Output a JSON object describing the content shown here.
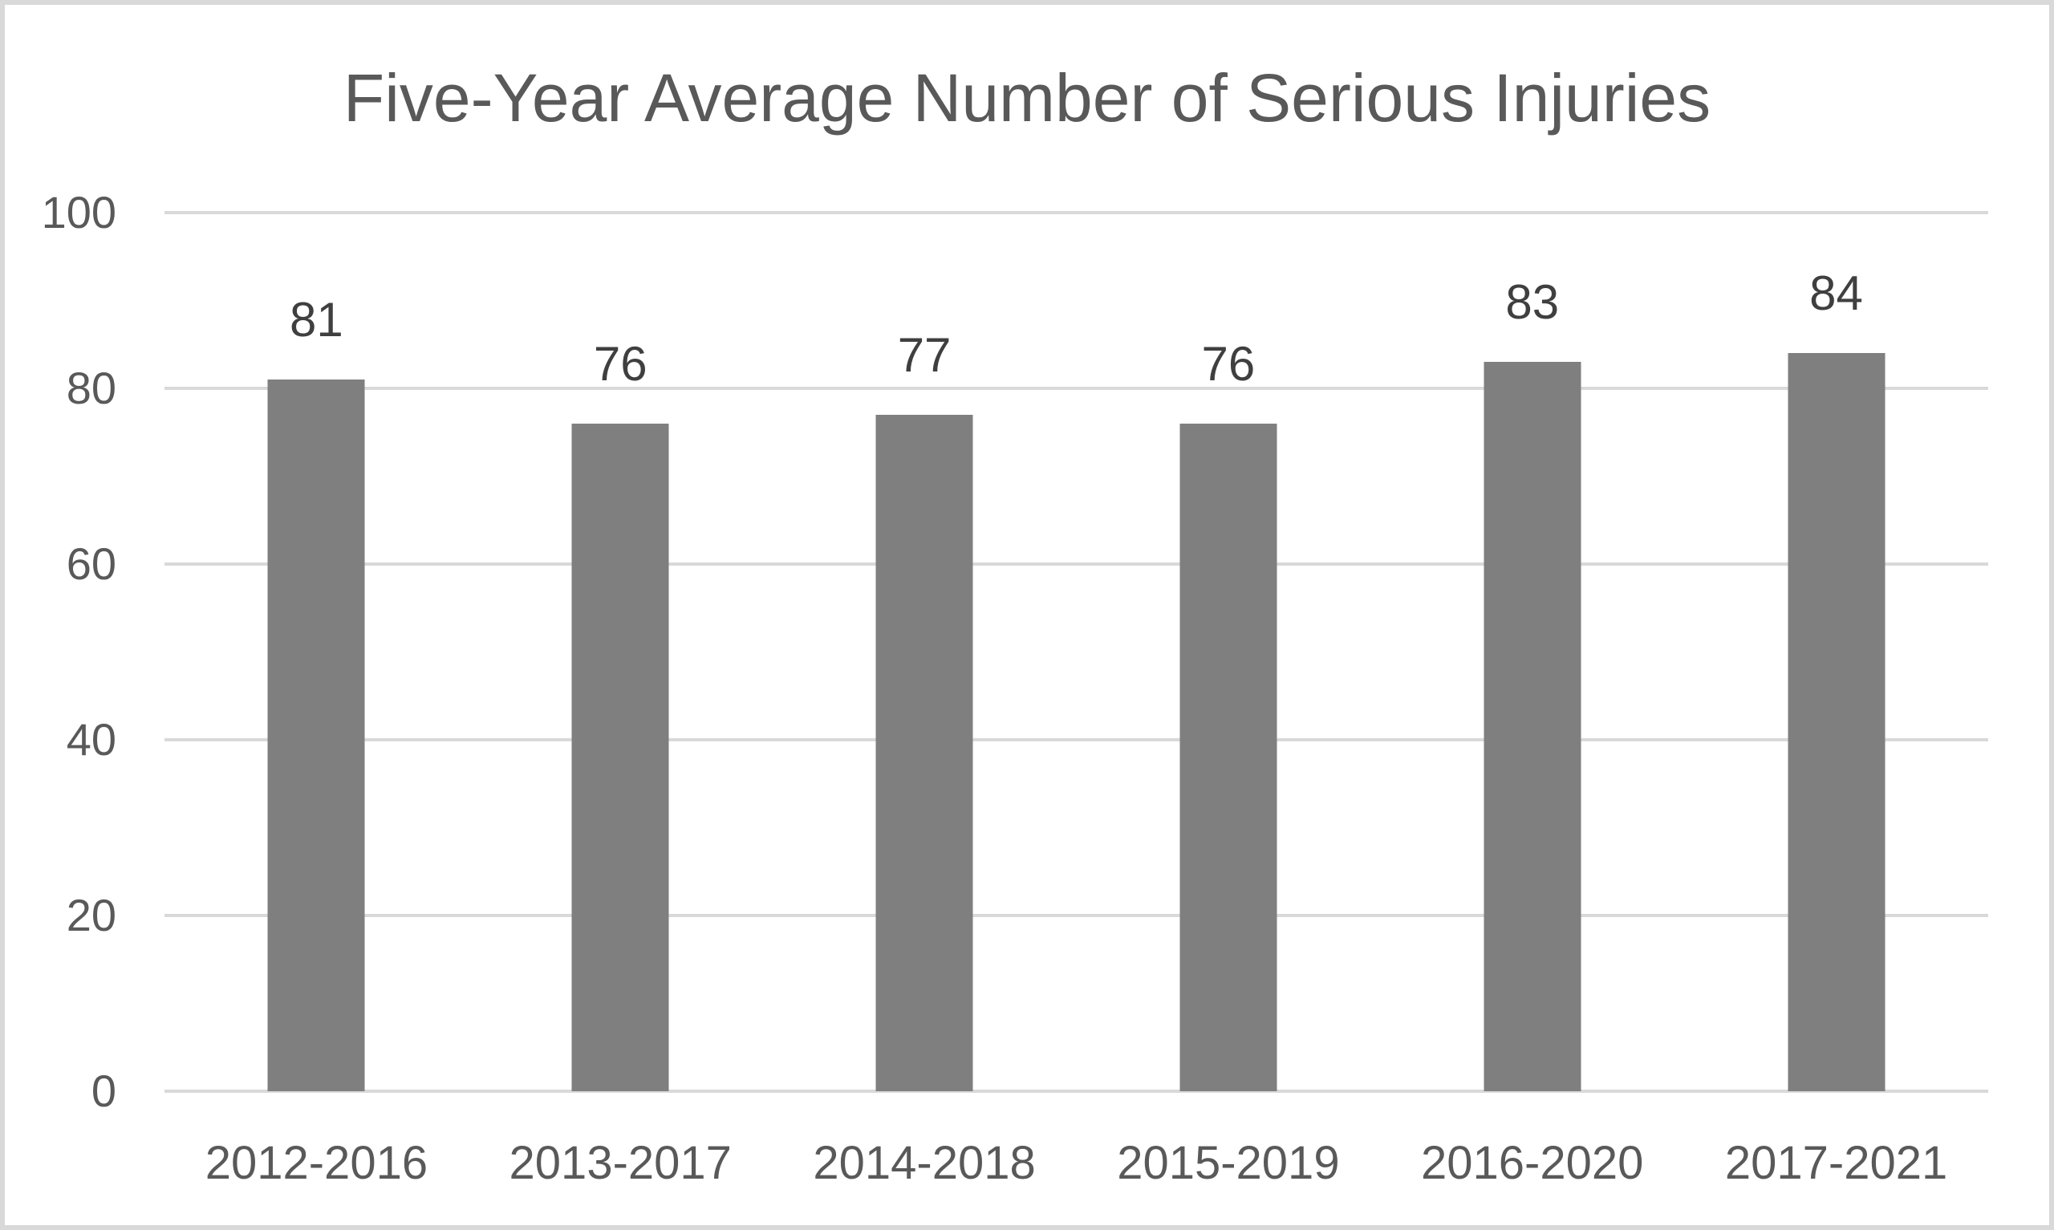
{
  "chart_data": {
    "type": "bar",
    "title": "Five-Year Average Number of Serious Injuries",
    "categories": [
      "2012-2016",
      "2013-2017",
      "2014-2018",
      "2015-2019",
      "2016-2020",
      "2017-2021"
    ],
    "values": [
      81,
      76,
      77,
      76,
      83,
      84
    ],
    "data_labels": [
      "81",
      "76",
      "77",
      "76",
      "83",
      "84"
    ],
    "yticks": [
      "100",
      "80",
      "60",
      "40",
      "20",
      "0"
    ],
    "ylim": [
      0,
      100
    ],
    "xlabel": "",
    "ylabel": "",
    "grid": "horizontal",
    "legend": "none",
    "colors": {
      "bar": "#7f7f7f",
      "gridline": "#d9d9d9",
      "title": "#595959",
      "axis_labels": "#595959",
      "data_labels": "#3f3f3f",
      "frame_border": "#d9d9d9",
      "background": "#ffffff"
    }
  }
}
